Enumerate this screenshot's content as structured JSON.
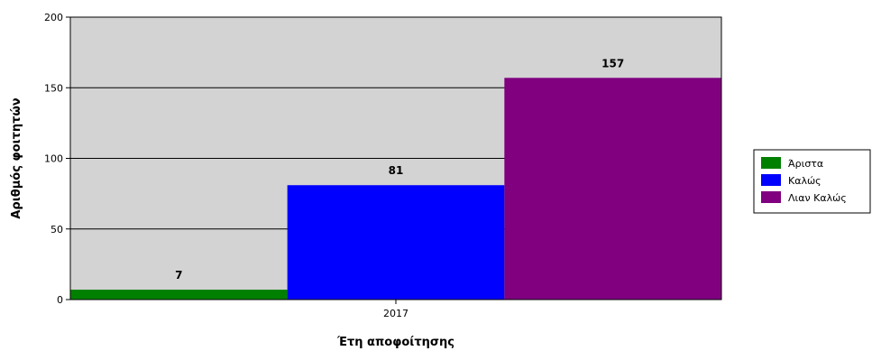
{
  "chart_data": {
    "type": "bar",
    "categories": [
      "2017"
    ],
    "series": [
      {
        "name": "Άριστα",
        "values": [
          7
        ],
        "color": "#008000"
      },
      {
        "name": "Καλώς",
        "values": [
          81
        ],
        "color": "#0000ff"
      },
      {
        "name": "Λιαν Καλώς",
        "values": [
          157
        ],
        "color": "#800080"
      }
    ],
    "xlabel": "Έτη αποφοίτησης",
    "ylabel": "Αριθμός φοιτητών",
    "ylim": [
      0,
      200
    ],
    "yticks": [
      0,
      50,
      100,
      150,
      200
    ],
    "grid": true,
    "plot_background": "#d3d3d3",
    "legend_position": "right"
  }
}
